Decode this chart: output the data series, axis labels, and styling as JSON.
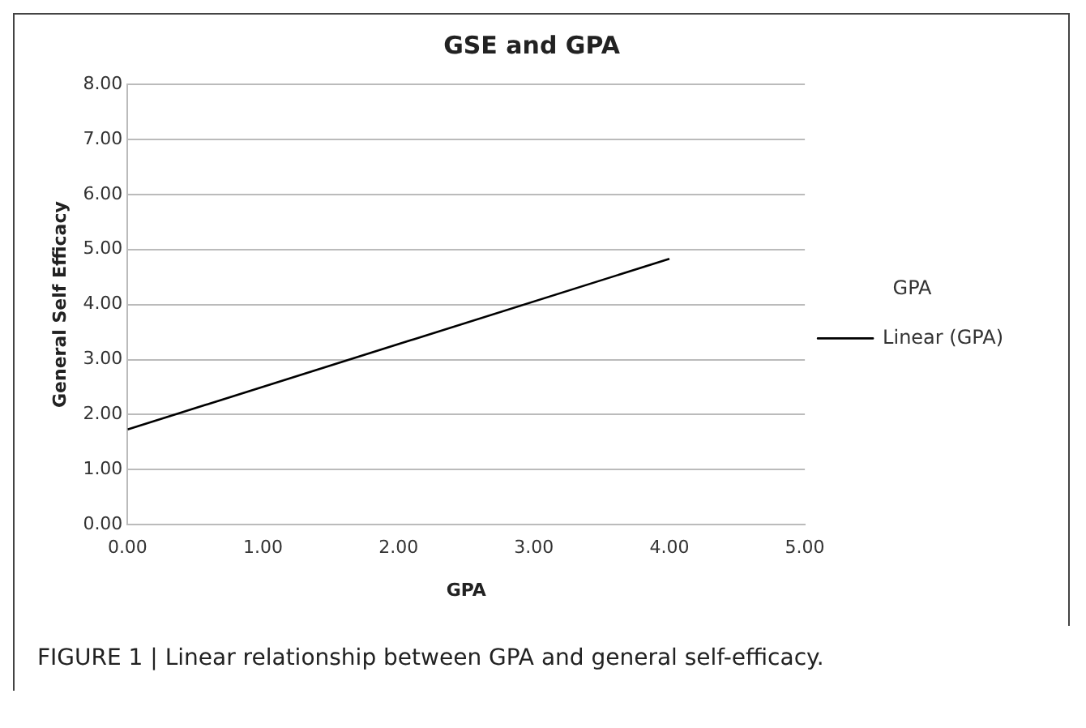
{
  "chart_data": {
    "type": "line",
    "title": "GSE and GPA",
    "xlabel": "GPA",
    "ylabel": "General Self Efficacy",
    "legend_title": "GPA",
    "legend": "right",
    "grid": "y",
    "marker": "none",
    "line_style": "solid",
    "x": [
      0,
      4
    ],
    "series": [
      {
        "name": "Linear (GPA)",
        "color": "#000000",
        "values": [
          1.73,
          4.83
        ]
      }
    ],
    "xlim": [
      0,
      5
    ],
    "xticks": [
      {
        "value": 0,
        "label": "0.00"
      },
      {
        "value": 1,
        "label": "1.00"
      },
      {
        "value": 2,
        "label": "2.00"
      },
      {
        "value": 3,
        "label": "3.00"
      },
      {
        "value": 4,
        "label": "4.00"
      },
      {
        "value": 5,
        "label": "5.00"
      }
    ],
    "ylim": [
      0,
      8
    ],
    "yticks": [
      {
        "value": 0,
        "label": "0.00"
      },
      {
        "value": 1,
        "label": "1.00"
      },
      {
        "value": 2,
        "label": "2.00"
      },
      {
        "value": 3,
        "label": "3.00"
      },
      {
        "value": 4,
        "label": "4.00"
      },
      {
        "value": 5,
        "label": "5.00"
      },
      {
        "value": 6,
        "label": "6.00"
      },
      {
        "value": 7,
        "label": "7.00"
      },
      {
        "value": 8,
        "label": "8.00"
      }
    ],
    "annotations": [
      "FIGURE 1 | Linear relationship between GPA and general self-efficacy."
    ]
  }
}
